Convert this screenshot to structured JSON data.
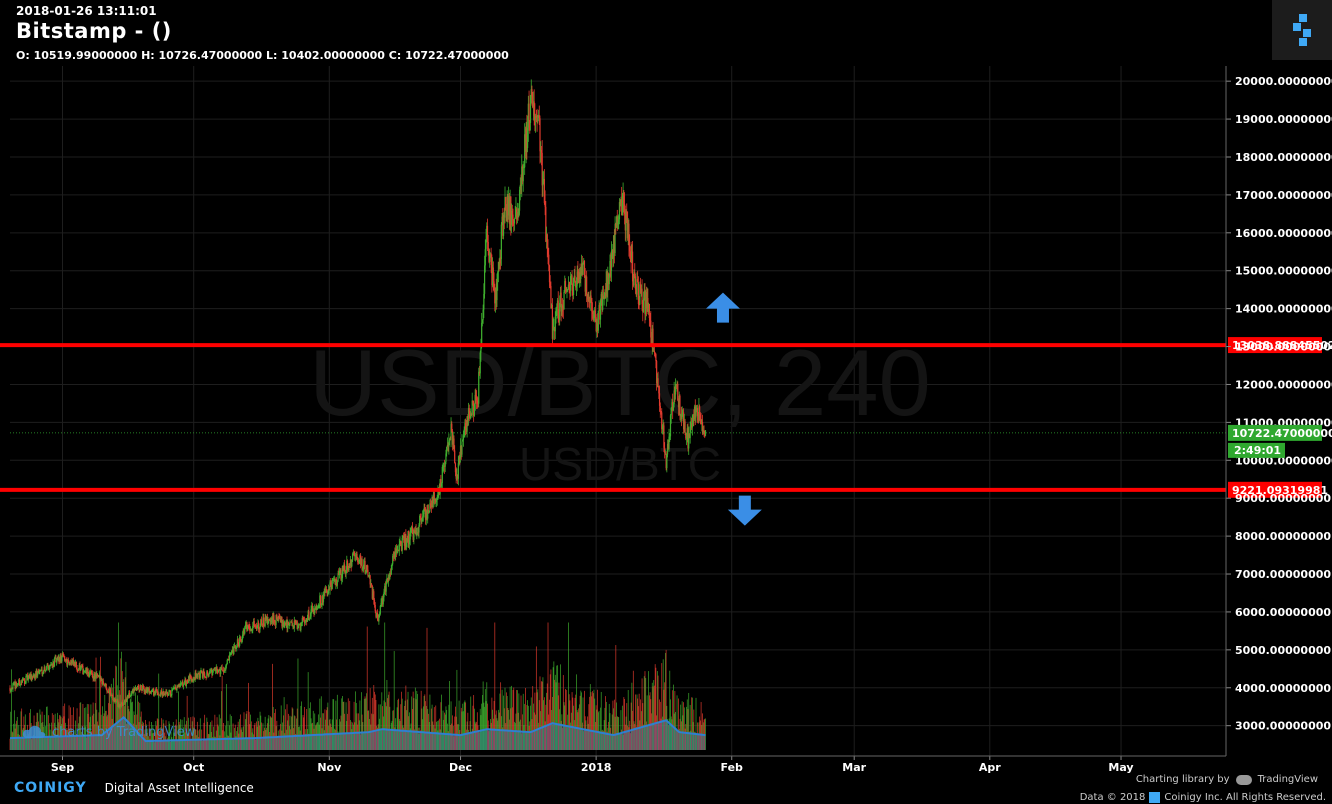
{
  "header": {
    "datetime": "2018-01-26 13:11:01",
    "title": "Bitstamp -  ()",
    "ohlc": "O: 10519.99000000 H: 10726.47000000 L: 10402.00000000 C: 10722.47000000"
  },
  "watermark": {
    "main": "USD/BTC, 240",
    "sub": "USD/BTC",
    "tradingview": "charts by TradingView"
  },
  "colors": {
    "background": "#000000",
    "grid": "#1e1e1e",
    "support_resistance": "#ff0000",
    "up": "#3fae2e",
    "down": "#e23b2e",
    "volume_area": "#2e7fd0",
    "current_price": "#2fa82f",
    "arrow": "#3a8ee6"
  },
  "chart_data": {
    "type": "candlestick",
    "y_axis_position": "right",
    "ylim": [
      2200,
      20400
    ],
    "y_ticks": [
      "20000.00000000",
      "19000.00000000",
      "18000.00000000",
      "17000.00000000",
      "16000.00000000",
      "15000.00000000",
      "14000.00000000",
      "13000.00000000",
      "12000.00000000",
      "11000.00000000",
      "10000.00000000",
      "9000.00000000",
      "8000.00000000",
      "7000.00000000",
      "6000.00000000",
      "5000.00000000",
      "4000.00000000",
      "3000.00000000"
    ],
    "y_tick_values": [
      20000,
      19000,
      18000,
      17000,
      16000,
      15000,
      14000,
      13000,
      12000,
      11000,
      10000,
      9000,
      8000,
      7000,
      6000,
      5000,
      4000,
      3000
    ],
    "x_ticks": [
      {
        "label": "Sep",
        "date": "2017-09-01"
      },
      {
        "label": "Oct",
        "date": "2017-10-01"
      },
      {
        "label": "Nov",
        "date": "2017-11-01"
      },
      {
        "label": "Dec",
        "date": "2017-12-01"
      },
      {
        "label": "2018",
        "date": "2018-01-01"
      },
      {
        "label": "Feb",
        "date": "2018-02-01"
      },
      {
        "label": "Mar",
        "date": "2018-03-01"
      },
      {
        "label": "Apr",
        "date": "2018-04-01"
      },
      {
        "label": "May",
        "date": "2018-05-01"
      }
    ],
    "x_range": [
      "2017-08-20",
      "2018-05-25"
    ],
    "grid": true,
    "price_path": [
      {
        "date": "2017-08-20",
        "price": 4000
      },
      {
        "date": "2017-08-25",
        "price": 4300
      },
      {
        "date": "2017-09-01",
        "price": 4800
      },
      {
        "date": "2017-09-05",
        "price": 4500
      },
      {
        "date": "2017-09-10",
        "price": 4200
      },
      {
        "date": "2017-09-14",
        "price": 3500
      },
      {
        "date": "2017-09-18",
        "price": 4000
      },
      {
        "date": "2017-09-25",
        "price": 3800
      },
      {
        "date": "2017-10-01",
        "price": 4300
      },
      {
        "date": "2017-10-08",
        "price": 4500
      },
      {
        "date": "2017-10-13",
        "price": 5600
      },
      {
        "date": "2017-10-20",
        "price": 5800
      },
      {
        "date": "2017-10-25",
        "price": 5600
      },
      {
        "date": "2017-11-01",
        "price": 6600
      },
      {
        "date": "2017-11-07",
        "price": 7500
      },
      {
        "date": "2017-11-10",
        "price": 7000
      },
      {
        "date": "2017-11-12",
        "price": 5800
      },
      {
        "date": "2017-11-16",
        "price": 7600
      },
      {
        "date": "2017-11-21",
        "price": 8200
      },
      {
        "date": "2017-11-26",
        "price": 9200
      },
      {
        "date": "2017-11-29",
        "price": 10800
      },
      {
        "date": "2017-11-30",
        "price": 9400
      },
      {
        "date": "2017-12-02",
        "price": 10900
      },
      {
        "date": "2017-12-05",
        "price": 11700
      },
      {
        "date": "2017-12-07",
        "price": 16000
      },
      {
        "date": "2017-12-09",
        "price": 14200
      },
      {
        "date": "2017-12-11",
        "price": 16700
      },
      {
        "date": "2017-12-14",
        "price": 16500
      },
      {
        "date": "2017-12-17",
        "price": 19500
      },
      {
        "date": "2017-12-19",
        "price": 18800
      },
      {
        "date": "2017-12-22",
        "price": 13500
      },
      {
        "date": "2017-12-25",
        "price": 14500
      },
      {
        "date": "2017-12-29",
        "price": 15000
      },
      {
        "date": "2018-01-01",
        "price": 13500
      },
      {
        "date": "2018-01-04",
        "price": 15000
      },
      {
        "date": "2018-01-07",
        "price": 17000
      },
      {
        "date": "2018-01-10",
        "price": 14500
      },
      {
        "date": "2018-01-13",
        "price": 14000
      },
      {
        "date": "2018-01-16",
        "price": 11000
      },
      {
        "date": "2018-01-17",
        "price": 10000
      },
      {
        "date": "2018-01-19",
        "price": 12000
      },
      {
        "date": "2018-01-22",
        "price": 10500
      },
      {
        "date": "2018-01-24",
        "price": 11400
      },
      {
        "date": "2018-01-26",
        "price": 10722.47
      }
    ],
    "volume_path": [
      {
        "date": "2017-08-20",
        "v": 0.2
      },
      {
        "date": "2017-09-10",
        "v": 0.25
      },
      {
        "date": "2017-09-15",
        "v": 0.55
      },
      {
        "date": "2017-09-20",
        "v": 0.15
      },
      {
        "date": "2017-10-15",
        "v": 0.2
      },
      {
        "date": "2017-11-10",
        "v": 0.3
      },
      {
        "date": "2017-11-13",
        "v": 0.35
      },
      {
        "date": "2017-12-01",
        "v": 0.25
      },
      {
        "date": "2017-12-07",
        "v": 0.35
      },
      {
        "date": "2017-12-17",
        "v": 0.3
      },
      {
        "date": "2017-12-22",
        "v": 0.45
      },
      {
        "date": "2018-01-05",
        "v": 0.25
      },
      {
        "date": "2018-01-17",
        "v": 0.5
      },
      {
        "date": "2018-01-20",
        "v": 0.3
      },
      {
        "date": "2018-01-26",
        "v": 0.25
      }
    ],
    "horizontal_lines": [
      {
        "value": 13038.88845502,
        "label": "13038.88845502",
        "color": "#ff0000"
      },
      {
        "value": 9221.09319981,
        "label": "9221.09319981",
        "color": "#ff0000"
      }
    ],
    "current_price": {
      "value": 10722.47,
      "label": "10722.47000000",
      "countdown": "2:49:01"
    },
    "annotations": [
      {
        "type": "arrow-up",
        "date": "2018-01-30",
        "value": 14000
      },
      {
        "type": "arrow-down",
        "date": "2018-02-04",
        "value": 8700
      }
    ]
  },
  "footer": {
    "brand": "COINIGY",
    "tagline": "Digital Asset Intelligence",
    "charting": "Charting library by",
    "tradingview": "TradingView",
    "data_prefix": "Data © 2018",
    "data_suffix": "Coinigy Inc. All Rights Reserved."
  }
}
